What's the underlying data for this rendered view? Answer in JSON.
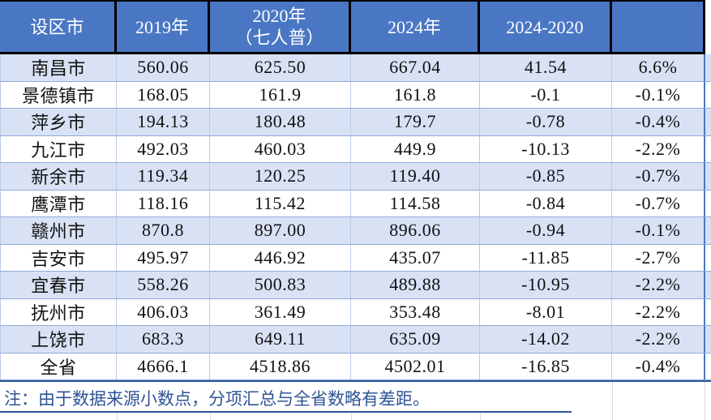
{
  "chart_data": {
    "type": "table",
    "columns": [
      "设区市",
      "2019年",
      "2020年（七人普）",
      "2024年",
      "2024-2020",
      ""
    ],
    "rows": [
      [
        "南昌市",
        "560.06",
        "625.50",
        "667.04",
        "41.54",
        "6.6%"
      ],
      [
        "景德镇市",
        "168.05",
        "161.9",
        "161.8",
        "-0.1",
        "-0.1%"
      ],
      [
        "萍乡市",
        "194.13",
        "180.48",
        "179.7",
        "-0.78",
        "-0.4%"
      ],
      [
        "九江市",
        "492.03",
        "460.03",
        "449.9",
        "-10.13",
        "-2.2%"
      ],
      [
        "新余市",
        "119.34",
        "120.25",
        "119.40",
        "-0.85",
        "-0.7%"
      ],
      [
        "鹰潭市",
        "118.16",
        "115.42",
        "114.58",
        "-0.84",
        "-0.7%"
      ],
      [
        "赣州市",
        "870.8",
        "897.00",
        "896.06",
        "-0.94",
        "-0.1%"
      ],
      [
        "吉安市",
        "495.97",
        "446.92",
        "435.07",
        "-11.85",
        "-2.7%"
      ],
      [
        "宜春市",
        "558.26",
        "500.83",
        "489.88",
        "-10.95",
        "-2.2%"
      ],
      [
        "抚州市",
        "406.03",
        "361.49",
        "353.48",
        "-8.01",
        "-2.2%"
      ],
      [
        "上饶市",
        "683.3",
        "649.11",
        "635.09",
        "-14.02",
        "-2.2%"
      ],
      [
        "全省",
        "4666.1",
        "4518.86",
        "4502.01",
        "-16.85",
        "-0.4%"
      ]
    ],
    "note": "注：由于数据来源小数点，分项汇总与全省数略有差距。"
  },
  "table": {
    "headers": [
      {
        "line1": "设区市",
        "line2": ""
      },
      {
        "line1": "2019年",
        "line2": ""
      },
      {
        "line1": "2020年",
        "line2": "（七人普）"
      },
      {
        "line1": "2024年",
        "line2": ""
      },
      {
        "line1": "2024-2020",
        "line2": ""
      },
      {
        "line1": "",
        "line2": ""
      }
    ],
    "rows": [
      {
        "city": "南昌市",
        "y2019": "560.06",
        "y2020": "625.50",
        "y2024": "667.04",
        "diff": "41.54",
        "pct": "6.6%"
      },
      {
        "city": "景德镇市",
        "y2019": "168.05",
        "y2020": "161.9",
        "y2024": "161.8",
        "diff": "-0.1",
        "pct": "-0.1%"
      },
      {
        "city": "萍乡市",
        "y2019": "194.13",
        "y2020": "180.48",
        "y2024": "179.7",
        "diff": "-0.78",
        "pct": "-0.4%"
      },
      {
        "city": "九江市",
        "y2019": "492.03",
        "y2020": "460.03",
        "y2024": "449.9",
        "diff": "-10.13",
        "pct": "-2.2%"
      },
      {
        "city": "新余市",
        "y2019": "119.34",
        "y2020": "120.25",
        "y2024": "119.40",
        "diff": "-0.85",
        "pct": "-0.7%"
      },
      {
        "city": "鹰潭市",
        "y2019": "118.16",
        "y2020": "115.42",
        "y2024": "114.58",
        "diff": "-0.84",
        "pct": "-0.7%"
      },
      {
        "city": "赣州市",
        "y2019": "870.8",
        "y2020": "897.00",
        "y2024": "896.06",
        "diff": "-0.94",
        "pct": "-0.1%"
      },
      {
        "city": "吉安市",
        "y2019": "495.97",
        "y2020": "446.92",
        "y2024": "435.07",
        "diff": "-11.85",
        "pct": "-2.7%"
      },
      {
        "city": "宜春市",
        "y2019": "558.26",
        "y2020": "500.83",
        "y2024": "489.88",
        "diff": "-10.95",
        "pct": "-2.2%"
      },
      {
        "city": "抚州市",
        "y2019": "406.03",
        "y2020": "361.49",
        "y2024": "353.48",
        "diff": "-8.01",
        "pct": "-2.2%"
      },
      {
        "city": "上饶市",
        "y2019": "683.3",
        "y2020": "649.11",
        "y2024": "635.09",
        "diff": "-14.02",
        "pct": "-2.2%"
      },
      {
        "city": "全省",
        "y2019": "4666.1",
        "y2020": "4518.86",
        "y2024": "4502.01",
        "diff": "-16.85",
        "pct": "-0.4%"
      }
    ],
    "note": "注：由于数据来源小数点，分项汇总与全省数略有差距。"
  },
  "colors": {
    "header_bg": "#4A77C4",
    "header_text": "#FFFFFF",
    "band_bg": "#D9E2F5",
    "row_line": "#8EAADB",
    "col_line": "#BCCDE8",
    "note_blue": "#2F5496",
    "header_border": "#000000"
  }
}
